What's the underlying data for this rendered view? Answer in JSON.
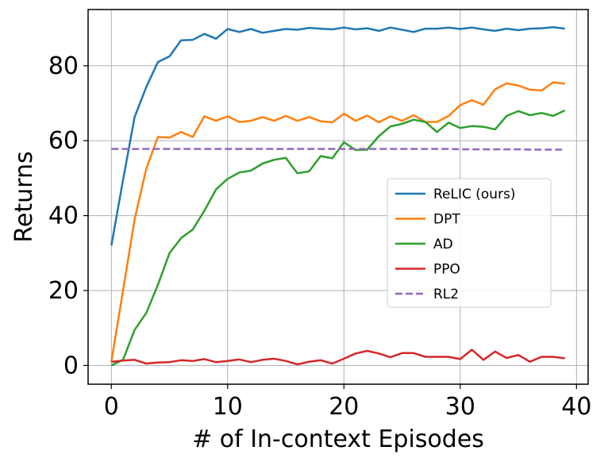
{
  "chart_data": {
    "type": "line",
    "title": "",
    "xlabel": "# of In-context Episodes",
    "ylabel": "Returns",
    "xlim": [
      -2,
      41
    ],
    "ylim": [
      -5,
      95
    ],
    "xticks": [
      0,
      10,
      20,
      30,
      40
    ],
    "yticks": [
      0,
      20,
      40,
      60,
      80
    ],
    "grid": true,
    "legend_position": "center-right",
    "x": [
      0,
      1,
      2,
      3,
      4,
      5,
      6,
      7,
      8,
      9,
      10,
      11,
      12,
      13,
      14,
      15,
      16,
      17,
      18,
      19,
      20,
      21,
      22,
      23,
      24,
      25,
      26,
      27,
      28,
      29,
      30,
      31,
      32,
      33,
      34,
      35,
      36,
      37,
      38,
      39
    ],
    "series": [
      {
        "name": "ReLIC (ours)",
        "color": "#1f77b4",
        "style": "solid",
        "values": [
          32.0,
          49.5,
          66.3,
          74.3,
          81.0,
          82.5,
          86.8,
          86.9,
          88.5,
          87.2,
          89.8,
          89.0,
          89.8,
          88.8,
          89.3,
          89.8,
          89.6,
          90.1,
          89.9,
          89.7,
          90.2,
          89.7,
          90.0,
          89.3,
          90.2,
          89.6,
          89.0,
          89.9,
          89.9,
          90.2,
          89.8,
          90.2,
          89.7,
          89.3,
          89.9,
          89.5,
          89.9,
          90.0,
          90.3,
          89.9
        ]
      },
      {
        "name": "DPT",
        "color": "#ff7f0e",
        "style": "solid",
        "values": [
          1.0,
          20.0,
          39.0,
          52.5,
          61.0,
          60.8,
          62.3,
          61.0,
          66.5,
          65.3,
          66.5,
          65.0,
          65.3,
          66.3,
          65.3,
          66.6,
          65.3,
          66.3,
          65.2,
          64.9,
          67.2,
          65.3,
          66.7,
          64.9,
          66.5,
          65.3,
          66.8,
          65.0,
          65.0,
          66.6,
          69.5,
          70.8,
          69.6,
          73.7,
          75.3,
          74.7,
          73.6,
          73.4,
          75.6,
          75.2
        ]
      },
      {
        "name": "AD",
        "color": "#2ca02c",
        "style": "solid",
        "values": [
          0.0,
          1.5,
          9.5,
          14.0,
          21.5,
          30.0,
          34.0,
          36.3,
          41.3,
          47.0,
          49.8,
          51.5,
          52.0,
          53.9,
          54.9,
          55.4,
          51.3,
          51.8,
          55.9,
          55.3,
          59.6,
          57.5,
          57.6,
          61.2,
          63.8,
          64.5,
          65.6,
          65.0,
          62.3,
          64.8,
          63.4,
          63.9,
          63.7,
          63.0,
          66.6,
          67.9,
          66.8,
          67.4,
          66.6,
          68.1
        ]
      },
      {
        "name": "PPO",
        "color": "#d62728",
        "style": "solid",
        "values": [
          1.0,
          1.3,
          1.5,
          0.5,
          0.8,
          0.9,
          1.4,
          1.2,
          1.7,
          0.9,
          1.2,
          1.6,
          0.9,
          1.5,
          1.8,
          1.2,
          0.3,
          1.0,
          1.4,
          0.5,
          1.8,
          3.2,
          3.9,
          3.2,
          2.2,
          3.3,
          3.3,
          2.3,
          2.3,
          2.3,
          1.7,
          4.2,
          1.5,
          3.7,
          2.0,
          2.8,
          1.0,
          2.3,
          2.3,
          1.9
        ]
      },
      {
        "name": "RL2",
        "color": "#9467bd",
        "style": "dashed",
        "values": [
          57.8,
          57.8,
          57.8,
          57.8,
          57.8,
          57.8,
          57.8,
          57.8,
          57.8,
          57.8,
          57.8,
          57.8,
          57.8,
          57.8,
          57.8,
          57.8,
          57.8,
          57.8,
          57.8,
          57.8,
          57.8,
          57.8,
          57.8,
          57.8,
          57.8,
          57.8,
          57.8,
          57.8,
          57.8,
          57.8,
          57.7,
          57.7,
          57.7,
          57.7,
          57.7,
          57.7,
          57.6,
          57.6,
          57.6,
          57.6
        ]
      }
    ]
  }
}
